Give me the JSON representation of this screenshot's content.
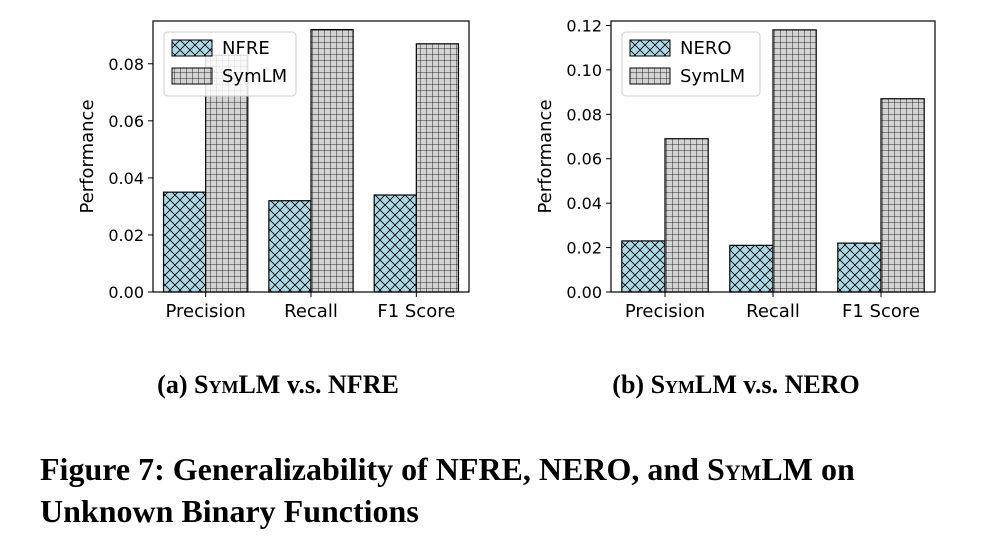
{
  "chart_data": [
    {
      "type": "bar",
      "categories": [
        "Precision",
        "Recall",
        "F1 Score"
      ],
      "series": [
        {
          "name": "NFRE",
          "values": [
            0.035,
            0.032,
            0.034
          ],
          "color": "#add8e6",
          "hatch": "cross-diagonal"
        },
        {
          "name": "SymLM",
          "values": [
            0.083,
            0.092,
            0.087
          ],
          "color": "#d3d3d3",
          "hatch": "grid"
        }
      ],
      "ylabel": "Performance",
      "ylim": [
        0,
        0.095
      ],
      "yticks": [
        "0.00",
        "0.02",
        "0.04",
        "0.06",
        "0.08"
      ],
      "legend": "top-left",
      "grid": false
    },
    {
      "type": "bar",
      "categories": [
        "Precision",
        "Recall",
        "F1 Score"
      ],
      "series": [
        {
          "name": "NERO",
          "values": [
            0.023,
            0.021,
            0.022
          ],
          "color": "#add8e6",
          "hatch": "cross-diagonal"
        },
        {
          "name": "SymLM",
          "values": [
            0.069,
            0.118,
            0.087
          ],
          "color": "#d3d3d3",
          "hatch": "grid"
        }
      ],
      "ylabel": "Performance",
      "ylim": [
        0,
        0.122
      ],
      "yticks": [
        "0.00",
        "0.02",
        "0.04",
        "0.06",
        "0.08",
        "0.10",
        "0.12"
      ],
      "legend": "top-left",
      "grid": false
    }
  ],
  "captions": {
    "sub_a": {
      "prefix": "(a) ",
      "sc": "SymLM",
      "suffix": " v.s. NFRE"
    },
    "sub_b": {
      "prefix": "(b) ",
      "sc": "SymLM",
      "suffix": " v.s. NERO"
    },
    "main": {
      "prefix": "Figure 7: Generalizability of NFRE, NERO, and ",
      "sc": "SymLM",
      "suffix": " on Unknown Binary Functions"
    }
  }
}
